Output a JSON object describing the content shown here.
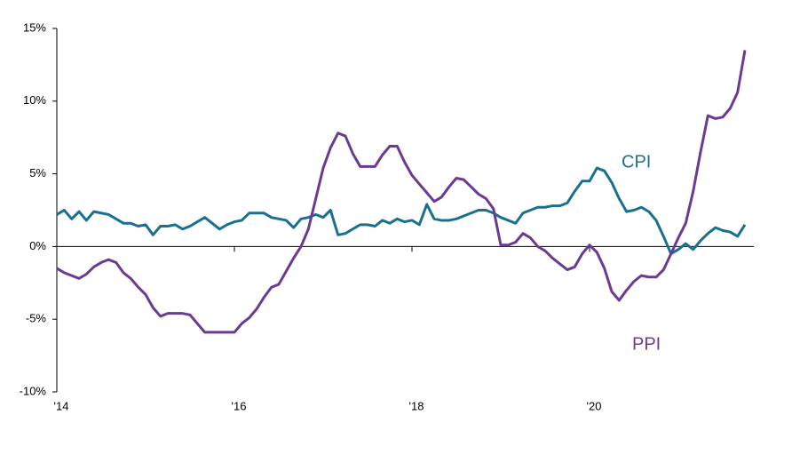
{
  "chart_data": {
    "type": "line",
    "x": [
      2014,
      2014.083,
      2014.167,
      2014.25,
      2014.333,
      2014.417,
      2014.5,
      2014.583,
      2014.667,
      2014.75,
      2014.833,
      2014.917,
      2015,
      2015.083,
      2015.167,
      2015.25,
      2015.333,
      2015.417,
      2015.5,
      2015.583,
      2015.667,
      2015.75,
      2015.833,
      2015.917,
      2016,
      2016.083,
      2016.167,
      2016.25,
      2016.333,
      2016.417,
      2016.5,
      2016.583,
      2016.667,
      2016.75,
      2016.833,
      2016.917,
      2017,
      2017.083,
      2017.167,
      2017.25,
      2017.333,
      2017.417,
      2017.5,
      2017.583,
      2017.667,
      2017.75,
      2017.833,
      2017.917,
      2018,
      2018.083,
      2018.167,
      2018.25,
      2018.333,
      2018.417,
      2018.5,
      2018.583,
      2018.667,
      2018.75,
      2018.833,
      2018.917,
      2019,
      2019.083,
      2019.167,
      2019.25,
      2019.333,
      2019.417,
      2019.5,
      2019.583,
      2019.667,
      2019.75,
      2019.833,
      2019.917,
      2020,
      2020.083,
      2020.167,
      2020.25,
      2020.333,
      2020.417,
      2020.5,
      2020.583,
      2020.667,
      2020.75,
      2020.833,
      2020.917,
      2021,
      2021.083,
      2021.167,
      2021.25,
      2021.333,
      2021.417,
      2021.5,
      2021.583,
      2021.667,
      2021.75
    ],
    "series": [
      {
        "name": "CPI",
        "color": "#19708f",
        "values": [
          2.2,
          2.5,
          1.9,
          2.4,
          1.8,
          2.4,
          2.3,
          2.2,
          1.9,
          1.6,
          1.6,
          1.4,
          1.5,
          0.8,
          1.4,
          1.4,
          1.5,
          1.2,
          1.4,
          1.7,
          2.0,
          1.6,
          1.2,
          1.5,
          1.7,
          1.8,
          2.3,
          2.3,
          2.3,
          2.0,
          1.9,
          1.8,
          1.3,
          1.9,
          2.0,
          2.2,
          2.0,
          2.5,
          0.8,
          0.9,
          1.2,
          1.5,
          1.5,
          1.4,
          1.8,
          1.6,
          1.9,
          1.7,
          1.8,
          1.5,
          2.9,
          1.9,
          1.8,
          1.8,
          1.9,
          2.1,
          2.3,
          2.5,
          2.5,
          2.3,
          2.0,
          1.8,
          1.6,
          2.3,
          2.5,
          2.7,
          2.7,
          2.8,
          2.8,
          3.0,
          3.8,
          4.5,
          4.5,
          5.4,
          5.2,
          4.4,
          3.3,
          2.4,
          2.5,
          2.7,
          2.4,
          1.8,
          0.7,
          -0.5,
          -0.2,
          0.2,
          -0.2,
          0.4,
          0.9,
          1.3,
          1.1,
          1.0,
          0.7,
          1.5
        ]
      },
      {
        "name": "PPI",
        "color": "#6b3a91",
        "values": [
          -1.5,
          -1.8,
          -2.0,
          -2.2,
          -1.9,
          -1.4,
          -1.1,
          -0.9,
          -1.1,
          -1.8,
          -2.2,
          -2.8,
          -3.3,
          -4.2,
          -4.8,
          -4.6,
          -4.6,
          -4.6,
          -4.7,
          -5.3,
          -5.9,
          -5.9,
          -5.9,
          -5.9,
          -5.9,
          -5.3,
          -4.9,
          -4.3,
          -3.5,
          -2.8,
          -2.6,
          -1.7,
          -0.8,
          0.0,
          1.2,
          3.3,
          5.4,
          6.8,
          7.8,
          7.6,
          6.4,
          5.5,
          5.5,
          5.5,
          6.3,
          6.9,
          6.9,
          5.8,
          4.9,
          4.3,
          3.7,
          3.1,
          3.4,
          4.1,
          4.7,
          4.6,
          4.1,
          3.6,
          3.3,
          2.6,
          0.1,
          0.1,
          0.3,
          0.9,
          0.6,
          0.0,
          -0.3,
          -0.8,
          -1.2,
          -1.6,
          -1.4,
          -0.5,
          0.1,
          -0.4,
          -1.5,
          -3.1,
          -3.7,
          -3.0,
          -2.4,
          -2.0,
          -2.1,
          -2.1,
          -1.6,
          -0.5,
          0.6,
          1.6,
          3.8,
          6.5,
          9.0,
          8.8,
          8.9,
          9.5,
          10.6,
          13.5
        ]
      }
    ],
    "xlim": [
      2014,
      2021.85
    ],
    "xticks": [
      {
        "value": 2014,
        "label": "'14"
      },
      {
        "value": 2016,
        "label": "'16"
      },
      {
        "value": 2018,
        "label": "'18"
      },
      {
        "value": 2020,
        "label": "'20"
      }
    ],
    "ylim": [
      -10,
      15
    ],
    "yticks": [
      {
        "value": -10,
        "label": "-10%"
      },
      {
        "value": -5,
        "label": "-5%"
      },
      {
        "value": 0,
        "label": "0%"
      },
      {
        "value": 5,
        "label": "5%"
      },
      {
        "value": 10,
        "label": "10%"
      },
      {
        "value": 15,
        "label": "15%"
      }
    ],
    "grid": false
  }
}
